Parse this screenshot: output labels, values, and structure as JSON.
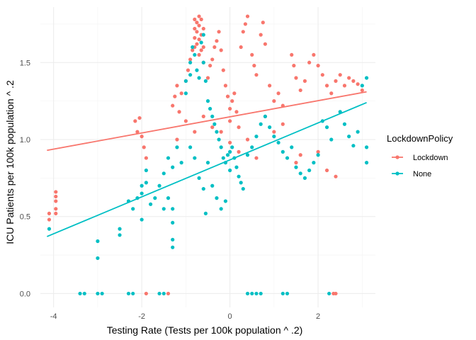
{
  "chart_data": {
    "type": "scatter",
    "title": "",
    "xlabel": "Testing Rate (Tests per 100k population ^ .2)",
    "ylabel": "ICU Patients per 100k population ^ .2",
    "xlim": [
      -4.3,
      3.3
    ],
    "ylim": [
      -0.09,
      1.86
    ],
    "x_ticks": [
      -4,
      -2,
      0,
      2
    ],
    "y_ticks": [
      0.0,
      0.5,
      1.0,
      1.5
    ],
    "x_tick_labels": [
      "-4",
      "-2",
      "0",
      "2"
    ],
    "y_tick_labels": [
      "0.0",
      "0.5",
      "1.0",
      "1.5"
    ],
    "grid": true,
    "legend": {
      "title": "LockdownPolicy",
      "position": "right",
      "entries": [
        "Lockdown",
        "None"
      ]
    },
    "series": [
      {
        "name": "Lockdown",
        "color": "#f8766d",
        "trend_line": [
          [
            -4.15,
            0.93
          ],
          [
            3.1,
            1.31
          ]
        ],
        "points": [
          [
            -4.1,
            0.52
          ],
          [
            -4.1,
            0.48
          ],
          [
            -3.95,
            0.66
          ],
          [
            -3.95,
            0.63
          ],
          [
            -3.95,
            0.6
          ],
          [
            -3.95,
            0.55
          ],
          [
            -3.95,
            0.52
          ],
          [
            -2.15,
            1.12
          ],
          [
            -2.1,
            1.05
          ],
          [
            -2.05,
            1.14
          ],
          [
            -2.0,
            1.02
          ],
          [
            -1.95,
            0.95
          ],
          [
            -1.9,
            0.88
          ],
          [
            -1.3,
            1.22
          ],
          [
            -1.25,
            1.28
          ],
          [
            -1.2,
            1.35
          ],
          [
            -1.15,
            1.18
          ],
          [
            -1.1,
            1.3
          ],
          [
            -1.0,
            1.38
          ],
          [
            -0.95,
            1.45
          ],
          [
            -0.9,
            1.52
          ],
          [
            -0.85,
            1.58
          ],
          [
            -0.8,
            1.6
          ],
          [
            -0.8,
            1.66
          ],
          [
            -0.8,
            1.72
          ],
          [
            -0.8,
            1.78
          ],
          [
            -0.75,
            1.62
          ],
          [
            -0.75,
            1.7
          ],
          [
            -0.75,
            1.76
          ],
          [
            -0.7,
            1.55
          ],
          [
            -0.7,
            1.65
          ],
          [
            -0.7,
            1.74
          ],
          [
            -0.7,
            1.8
          ],
          [
            -0.65,
            1.58
          ],
          [
            -0.65,
            1.68
          ],
          [
            -0.65,
            1.78
          ],
          [
            -0.6,
            1.5
          ],
          [
            -0.6,
            1.6
          ],
          [
            -0.6,
            1.72
          ],
          [
            -0.5,
            1.4
          ],
          [
            -0.45,
            1.48
          ],
          [
            -0.4,
            1.52
          ],
          [
            -0.35,
            1.6
          ],
          [
            -0.3,
            1.64
          ],
          [
            -0.25,
            1.7
          ],
          [
            -0.2,
            1.58
          ],
          [
            -0.15,
            1.45
          ],
          [
            -0.1,
            1.35
          ],
          [
            -0.05,
            1.28
          ],
          [
            0.0,
            1.2
          ],
          [
            0.0,
            1.12
          ],
          [
            0.05,
            1.25
          ],
          [
            0.1,
            1.3
          ],
          [
            0.15,
            1.18
          ],
          [
            0.2,
            1.08
          ],
          [
            0.25,
            1.6
          ],
          [
            0.3,
            1.7
          ],
          [
            0.35,
            1.75
          ],
          [
            0.4,
            1.8
          ],
          [
            0.5,
            1.55
          ],
          [
            0.55,
            1.48
          ],
          [
            0.6,
            1.42
          ],
          [
            0.7,
            1.68
          ],
          [
            0.75,
            1.76
          ],
          [
            0.8,
            1.62
          ],
          [
            0.9,
            1.35
          ],
          [
            1.0,
            1.25
          ],
          [
            1.1,
            1.3
          ],
          [
            1.2,
            1.22
          ],
          [
            1.4,
            1.55
          ],
          [
            1.45,
            1.48
          ],
          [
            1.5,
            1.4
          ],
          [
            1.6,
            1.32
          ],
          [
            1.7,
            1.38
          ],
          [
            1.8,
            1.5
          ],
          [
            1.9,
            1.55
          ],
          [
            2.0,
            1.48
          ],
          [
            2.1,
            1.42
          ],
          [
            2.2,
            1.35
          ],
          [
            2.3,
            1.3
          ],
          [
            2.4,
            1.38
          ],
          [
            2.5,
            1.42
          ],
          [
            2.6,
            1.35
          ],
          [
            2.7,
            1.4
          ],
          [
            2.8,
            1.38
          ],
          [
            2.9,
            1.36
          ],
          [
            3.0,
            1.32
          ],
          [
            -0.2,
            1.05
          ],
          [
            0.0,
            0.98
          ],
          [
            0.2,
            0.92
          ],
          [
            0.4,
            1.0
          ],
          [
            0.6,
            0.88
          ],
          [
            1.5,
            0.85
          ],
          [
            1.6,
            0.9
          ],
          [
            2.0,
            0.92
          ],
          [
            2.2,
            0.8
          ],
          [
            2.4,
            0.76
          ],
          [
            -1.2,
            1.0
          ],
          [
            -1.0,
            1.12
          ],
          [
            -0.8,
            1.05
          ],
          [
            -0.6,
            1.15
          ],
          [
            -0.4,
            1.08
          ],
          [
            0.8,
            1.15
          ],
          [
            1.0,
            1.05
          ],
          [
            1.2,
            1.1
          ],
          [
            -1.9,
            0.0
          ],
          [
            -1.4,
            0.0
          ],
          [
            2.35,
            0.0
          ],
          [
            2.4,
            0.0
          ]
        ]
      },
      {
        "name": "None",
        "color": "#00bfc4",
        "trend_line": [
          [
            -4.15,
            0.37
          ],
          [
            3.1,
            1.24
          ]
        ],
        "points": [
          [
            -4.1,
            0.42
          ],
          [
            -3.0,
            0.34
          ],
          [
            -3.0,
            0.23
          ],
          [
            -2.5,
            0.42
          ],
          [
            -2.5,
            0.38
          ],
          [
            -2.3,
            0.6
          ],
          [
            -2.2,
            0.55
          ],
          [
            -2.1,
            0.62
          ],
          [
            -2.0,
            0.7
          ],
          [
            -2.0,
            0.48
          ],
          [
            -2.0,
            0.65
          ],
          [
            -1.9,
            0.72
          ],
          [
            -1.9,
            0.8
          ],
          [
            -1.8,
            0.58
          ],
          [
            -1.7,
            0.62
          ],
          [
            -1.5,
            0.78
          ],
          [
            -1.4,
            0.88
          ],
          [
            -1.3,
            0.82
          ],
          [
            -1.3,
            0.3
          ],
          [
            -1.3,
            0.35
          ],
          [
            -1.3,
            0.46
          ],
          [
            -1.3,
            0.55
          ],
          [
            -1.0,
            1.3
          ],
          [
            -1.0,
            1.38
          ],
          [
            -0.9,
            1.42
          ],
          [
            -0.9,
            1.5
          ],
          [
            -0.85,
            1.6
          ],
          [
            -0.8,
            1.55
          ],
          [
            -0.75,
            1.45
          ],
          [
            -0.7,
            1.4
          ],
          [
            -0.65,
            1.63
          ],
          [
            -0.6,
            1.68
          ],
          [
            -0.6,
            1.5
          ],
          [
            -0.55,
            1.38
          ],
          [
            -0.5,
            1.25
          ],
          [
            -0.45,
            1.2
          ],
          [
            -0.4,
            1.15
          ],
          [
            -0.35,
            1.1
          ],
          [
            -0.3,
            1.05
          ],
          [
            -0.25,
            1.0
          ],
          [
            -0.2,
            0.95
          ],
          [
            -0.15,
            0.88
          ],
          [
            -0.1,
            0.85
          ],
          [
            -0.05,
            0.9
          ],
          [
            0.0,
            0.92
          ],
          [
            0.0,
            0.8
          ],
          [
            0.05,
            0.95
          ],
          [
            0.1,
            0.88
          ],
          [
            0.15,
            0.82
          ],
          [
            0.2,
            0.76
          ],
          [
            0.25,
            0.72
          ],
          [
            0.3,
            0.68
          ],
          [
            -0.5,
            0.85
          ],
          [
            -0.4,
            0.7
          ],
          [
            -0.3,
            0.62
          ],
          [
            -0.2,
            0.55
          ],
          [
            -0.1,
            0.6
          ],
          [
            0.4,
            0.9
          ],
          [
            0.5,
            0.95
          ],
          [
            0.6,
            1.02
          ],
          [
            0.7,
            1.1
          ],
          [
            0.8,
            1.15
          ],
          [
            0.9,
            1.08
          ],
          [
            1.0,
            1.02
          ],
          [
            1.1,
            0.98
          ],
          [
            1.2,
            0.92
          ],
          [
            1.3,
            0.88
          ],
          [
            1.4,
            0.95
          ],
          [
            1.5,
            0.82
          ],
          [
            1.6,
            0.78
          ],
          [
            1.7,
            0.75
          ],
          [
            1.8,
            0.8
          ],
          [
            1.9,
            0.85
          ],
          [
            2.0,
            0.9
          ],
          [
            2.1,
            1.12
          ],
          [
            2.2,
            1.08
          ],
          [
            2.3,
            1.0
          ],
          [
            2.5,
            1.18
          ],
          [
            2.6,
            1.1
          ],
          [
            2.7,
            1.02
          ],
          [
            2.8,
            0.96
          ],
          [
            2.9,
            1.05
          ],
          [
            3.0,
            1.35
          ],
          [
            3.1,
            1.4
          ],
          [
            3.1,
            0.95
          ],
          [
            3.1,
            0.85
          ],
          [
            -0.9,
            0.95
          ],
          [
            -0.8,
            0.88
          ],
          [
            -0.7,
            0.75
          ],
          [
            -0.6,
            0.68
          ],
          [
            -0.55,
            0.52
          ],
          [
            -1.6,
            0.7
          ],
          [
            -1.5,
            0.55
          ],
          [
            -1.4,
            0.62
          ],
          [
            -1.2,
            0.95
          ],
          [
            -1.1,
            0.85
          ],
          [
            -3.4,
            0.0
          ],
          [
            -3.3,
            0.0
          ],
          [
            -3.0,
            0.0
          ],
          [
            -2.9,
            0.0
          ],
          [
            -2.3,
            0.0
          ],
          [
            -2.2,
            0.0
          ],
          [
            -1.6,
            0.0
          ],
          [
            -1.5,
            0.0
          ],
          [
            0.4,
            0.0
          ],
          [
            0.5,
            0.0
          ],
          [
            0.6,
            0.0
          ],
          [
            0.7,
            0.0
          ],
          [
            1.2,
            0.0
          ],
          [
            1.3,
            0.0
          ],
          [
            2.25,
            0.0
          ]
        ]
      }
    ]
  }
}
